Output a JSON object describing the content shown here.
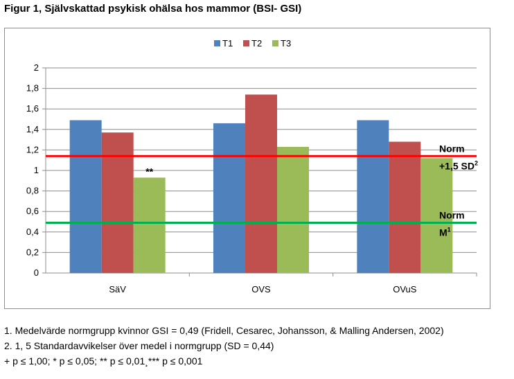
{
  "title": "Figur 1, Självskattad psykisk ohälsa hos mammor (BSI- GSI)",
  "chart_data": {
    "type": "bar",
    "categories": [
      "SäV",
      "OVS",
      "OVuS"
    ],
    "series": [
      {
        "name": "T1",
        "values": [
          1.49,
          1.46,
          1.49
        ],
        "color": "#4f81bd"
      },
      {
        "name": "T2",
        "values": [
          1.37,
          1.74,
          1.28
        ],
        "color": "#c0504d"
      },
      {
        "name": "T3",
        "values": [
          0.93,
          1.23,
          1.12
        ],
        "color": "#9bbb59"
      }
    ],
    "ylim": [
      0,
      2
    ],
    "yticks": [
      "0",
      "0,2",
      "0,4",
      "0,6",
      "0,8",
      "1",
      "1,2",
      "1,4",
      "1,6",
      "1,8",
      "2"
    ],
    "grid": true,
    "legend_position": "top-center",
    "reference_lines": [
      {
        "value": 1.14,
        "color": "#ff0000",
        "label_line1": "Norm",
        "label_line2": "+1,5  SD",
        "sup": "2"
      },
      {
        "value": 0.49,
        "color": "#00b050",
        "label_line1": "Norm",
        "label_line2": "M",
        "sup": "1"
      }
    ],
    "annotations": [
      {
        "category": "SäV",
        "series": "T3",
        "text": "**"
      }
    ]
  },
  "notes": {
    "line1": "1. Medelvärde normgrupp kvinnor GSI = 0,49 (Fridell, Cesarec, Johansson, & Malling Andersen, 2002)",
    "line2": "2. 1, 5 Standardavvikelser över medel i normgrupp (SD = 0,44)",
    "line3": "+ p ≤ 1,00; * p ≤ 0,05; ** p ≤ 0,01¸*** p ≤ 0,001"
  }
}
